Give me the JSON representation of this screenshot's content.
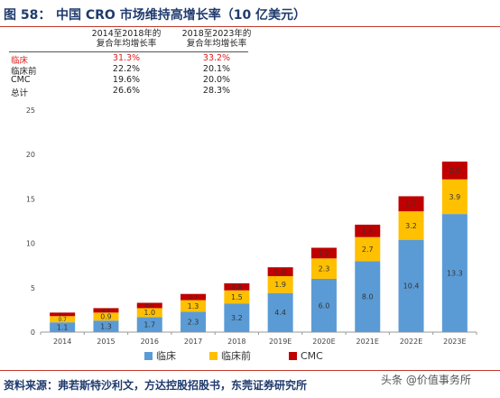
{
  "figure": {
    "label": "图 58：",
    "title": "中国 CRO 市场维持高增长率（10 亿美元）"
  },
  "cagr_table": {
    "headers": [
      [
        "2014至2018年的",
        "复合年均增长率"
      ],
      [
        "2018至2023年的",
        "复合年均增长率"
      ]
    ],
    "rows": [
      {
        "name": "临床",
        "v1": "31.3%",
        "v2": "33.2%",
        "highlight": true
      },
      {
        "name": "临床前",
        "v1": "22.2%",
        "v2": "20.1%",
        "highlight": false
      },
      {
        "name": "CMC",
        "v1": "19.6%",
        "v2": "20.0%",
        "highlight": false
      },
      {
        "name": "总计",
        "v1": "26.6%",
        "v2": "28.3%",
        "highlight": false
      }
    ]
  },
  "chart_data": {
    "type": "bar",
    "stacked": true,
    "categories": [
      "2014",
      "2015",
      "2016",
      "2017",
      "2018",
      "2019E",
      "2020E",
      "2021E",
      "2022E",
      "2023E"
    ],
    "series": [
      {
        "name": "临床",
        "color": "#5b9bd5",
        "values": [
          1.1,
          1.3,
          1.7,
          2.3,
          3.2,
          4.4,
          6.0,
          8.0,
          10.4,
          13.3
        ],
        "labels": [
          "1.1",
          "1.3",
          "1.7",
          "2.3",
          "3.2",
          "4.4",
          "6.0",
          "8.0",
          "10.4",
          "13.3"
        ]
      },
      {
        "name": "临床前",
        "color": "#ffc000",
        "values": [
          0.7,
          0.9,
          1.0,
          1.3,
          1.5,
          1.9,
          2.3,
          2.7,
          3.2,
          3.9
        ],
        "labels": [
          "0.7",
          "0.9",
          "1.0",
          "1.3",
          "1.5",
          "1.9",
          "2.3",
          "2.7",
          "3.2",
          "3.9"
        ]
      },
      {
        "name": "CMC",
        "color": "#c00000",
        "values": [
          0.4,
          0.5,
          0.6,
          0.7,
          0.8,
          1.0,
          1.2,
          1.4,
          1.7,
          2.0
        ],
        "labels": [
          "0.4",
          "0.5",
          "0.6",
          "0.7",
          "0.8",
          "1.0",
          "1.2",
          "1.4",
          "1.7",
          "2.0"
        ]
      }
    ],
    "ylim": [
      0,
      25
    ],
    "yticks": [
      "0",
      "5",
      "10",
      "15",
      "20",
      "25"
    ],
    "grid": false,
    "legend_position": "bottom"
  },
  "footer": {
    "source": "资料来源：弗若斯特沙利文，方达控股招股书，东莞证券研究所",
    "watermark": "头条 @价值事务所"
  }
}
